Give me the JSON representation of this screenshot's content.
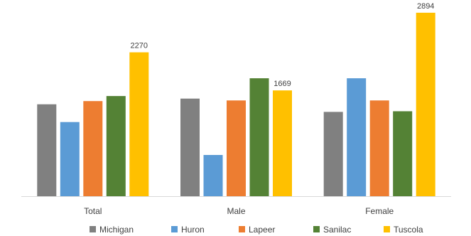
{
  "chart_data": {
    "type": "bar",
    "categories": [
      "Total",
      "Male",
      "Female"
    ],
    "series": [
      {
        "name": "Michigan",
        "color": "#808080",
        "values": [
          1450,
          1540,
          1330
        ]
      },
      {
        "name": "Huron",
        "color": "#5b9bd5",
        "values": [
          1170,
          650,
          1860
        ]
      },
      {
        "name": "Lapeer",
        "color": "#ed7d31",
        "values": [
          1500,
          1510,
          1510
        ]
      },
      {
        "name": "Sanilac",
        "color": "#548235",
        "values": [
          1580,
          1860,
          1340
        ]
      },
      {
        "name": "Tuscola",
        "color": "#ffc000",
        "values": [
          2270,
          1669,
          2894
        ]
      }
    ],
    "data_labels": [
      {
        "series": "Tuscola",
        "category": "Total",
        "text": "2270"
      },
      {
        "series": "Tuscola",
        "category": "Male",
        "text": "1669"
      },
      {
        "series": "Tuscola",
        "category": "Female",
        "text": "2894"
      }
    ],
    "ylim": [
      0,
      3050
    ],
    "grid": false,
    "legend_position": "bottom",
    "title": "",
    "xlabel": "",
    "ylabel": ""
  }
}
